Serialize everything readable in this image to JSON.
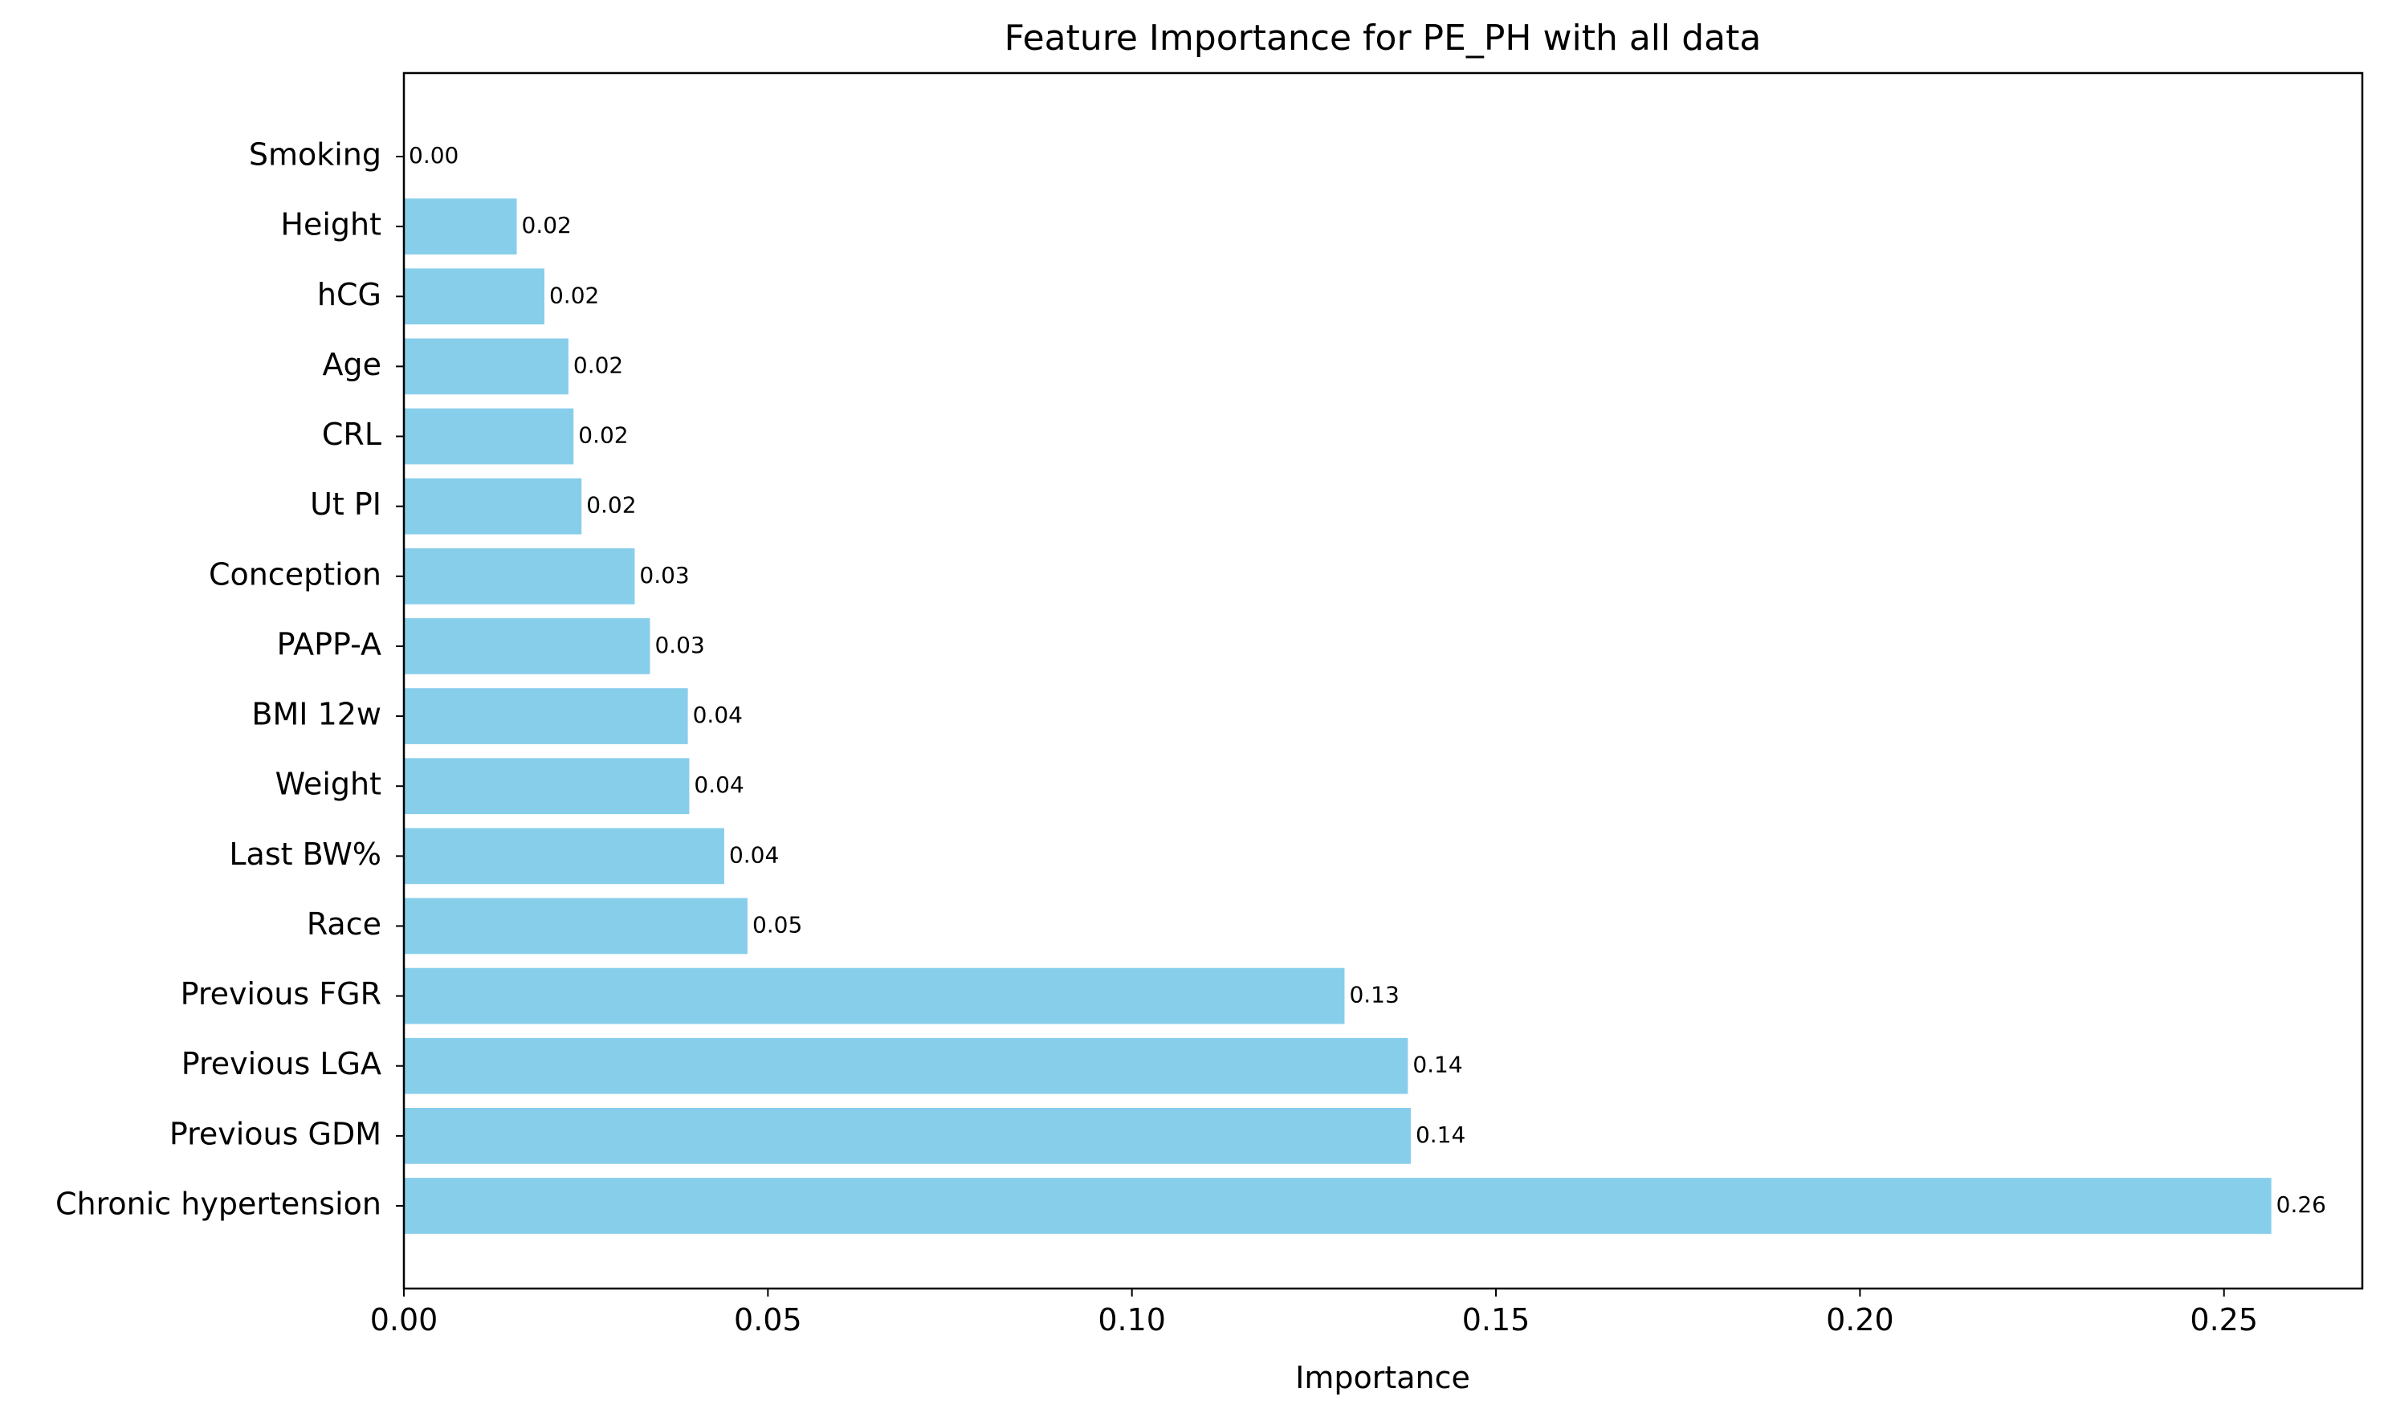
{
  "chart_data": {
    "type": "bar",
    "orientation": "horizontal",
    "title": "Feature Importance for PE_PH with all data",
    "xlabel": "Importance",
    "ylabel": "",
    "xlim": [
      0,
      0.269
    ],
    "xticks": [
      "0.00",
      "0.05",
      "0.10",
      "0.15",
      "0.20",
      "0.25"
    ],
    "grid": false,
    "bar_color": "#87CEEB",
    "categories": [
      "Chronic hypertension",
      "Previous GDM",
      "Previous LGA",
      "Previous FGR",
      "Race",
      "Last BW%",
      "Weight",
      "BMI 12w",
      "PAPP-A",
      "Conception",
      "Ut PI",
      "CRL",
      "Age",
      "hCG",
      "Height",
      "Smoking"
    ],
    "values": [
      0.2565,
      0.1383,
      0.1379,
      0.1292,
      0.0472,
      0.044,
      0.0392,
      0.039,
      0.0338,
      0.0317,
      0.0244,
      0.0233,
      0.0226,
      0.0193,
      0.0155,
      0.0
    ],
    "data_labels": [
      "0.26",
      "0.14",
      "0.14",
      "0.13",
      "0.05",
      "0.04",
      "0.04",
      "0.04",
      "0.03",
      "0.03",
      "0.02",
      "0.02",
      "0.02",
      "0.02",
      "0.02",
      "0.00"
    ]
  }
}
